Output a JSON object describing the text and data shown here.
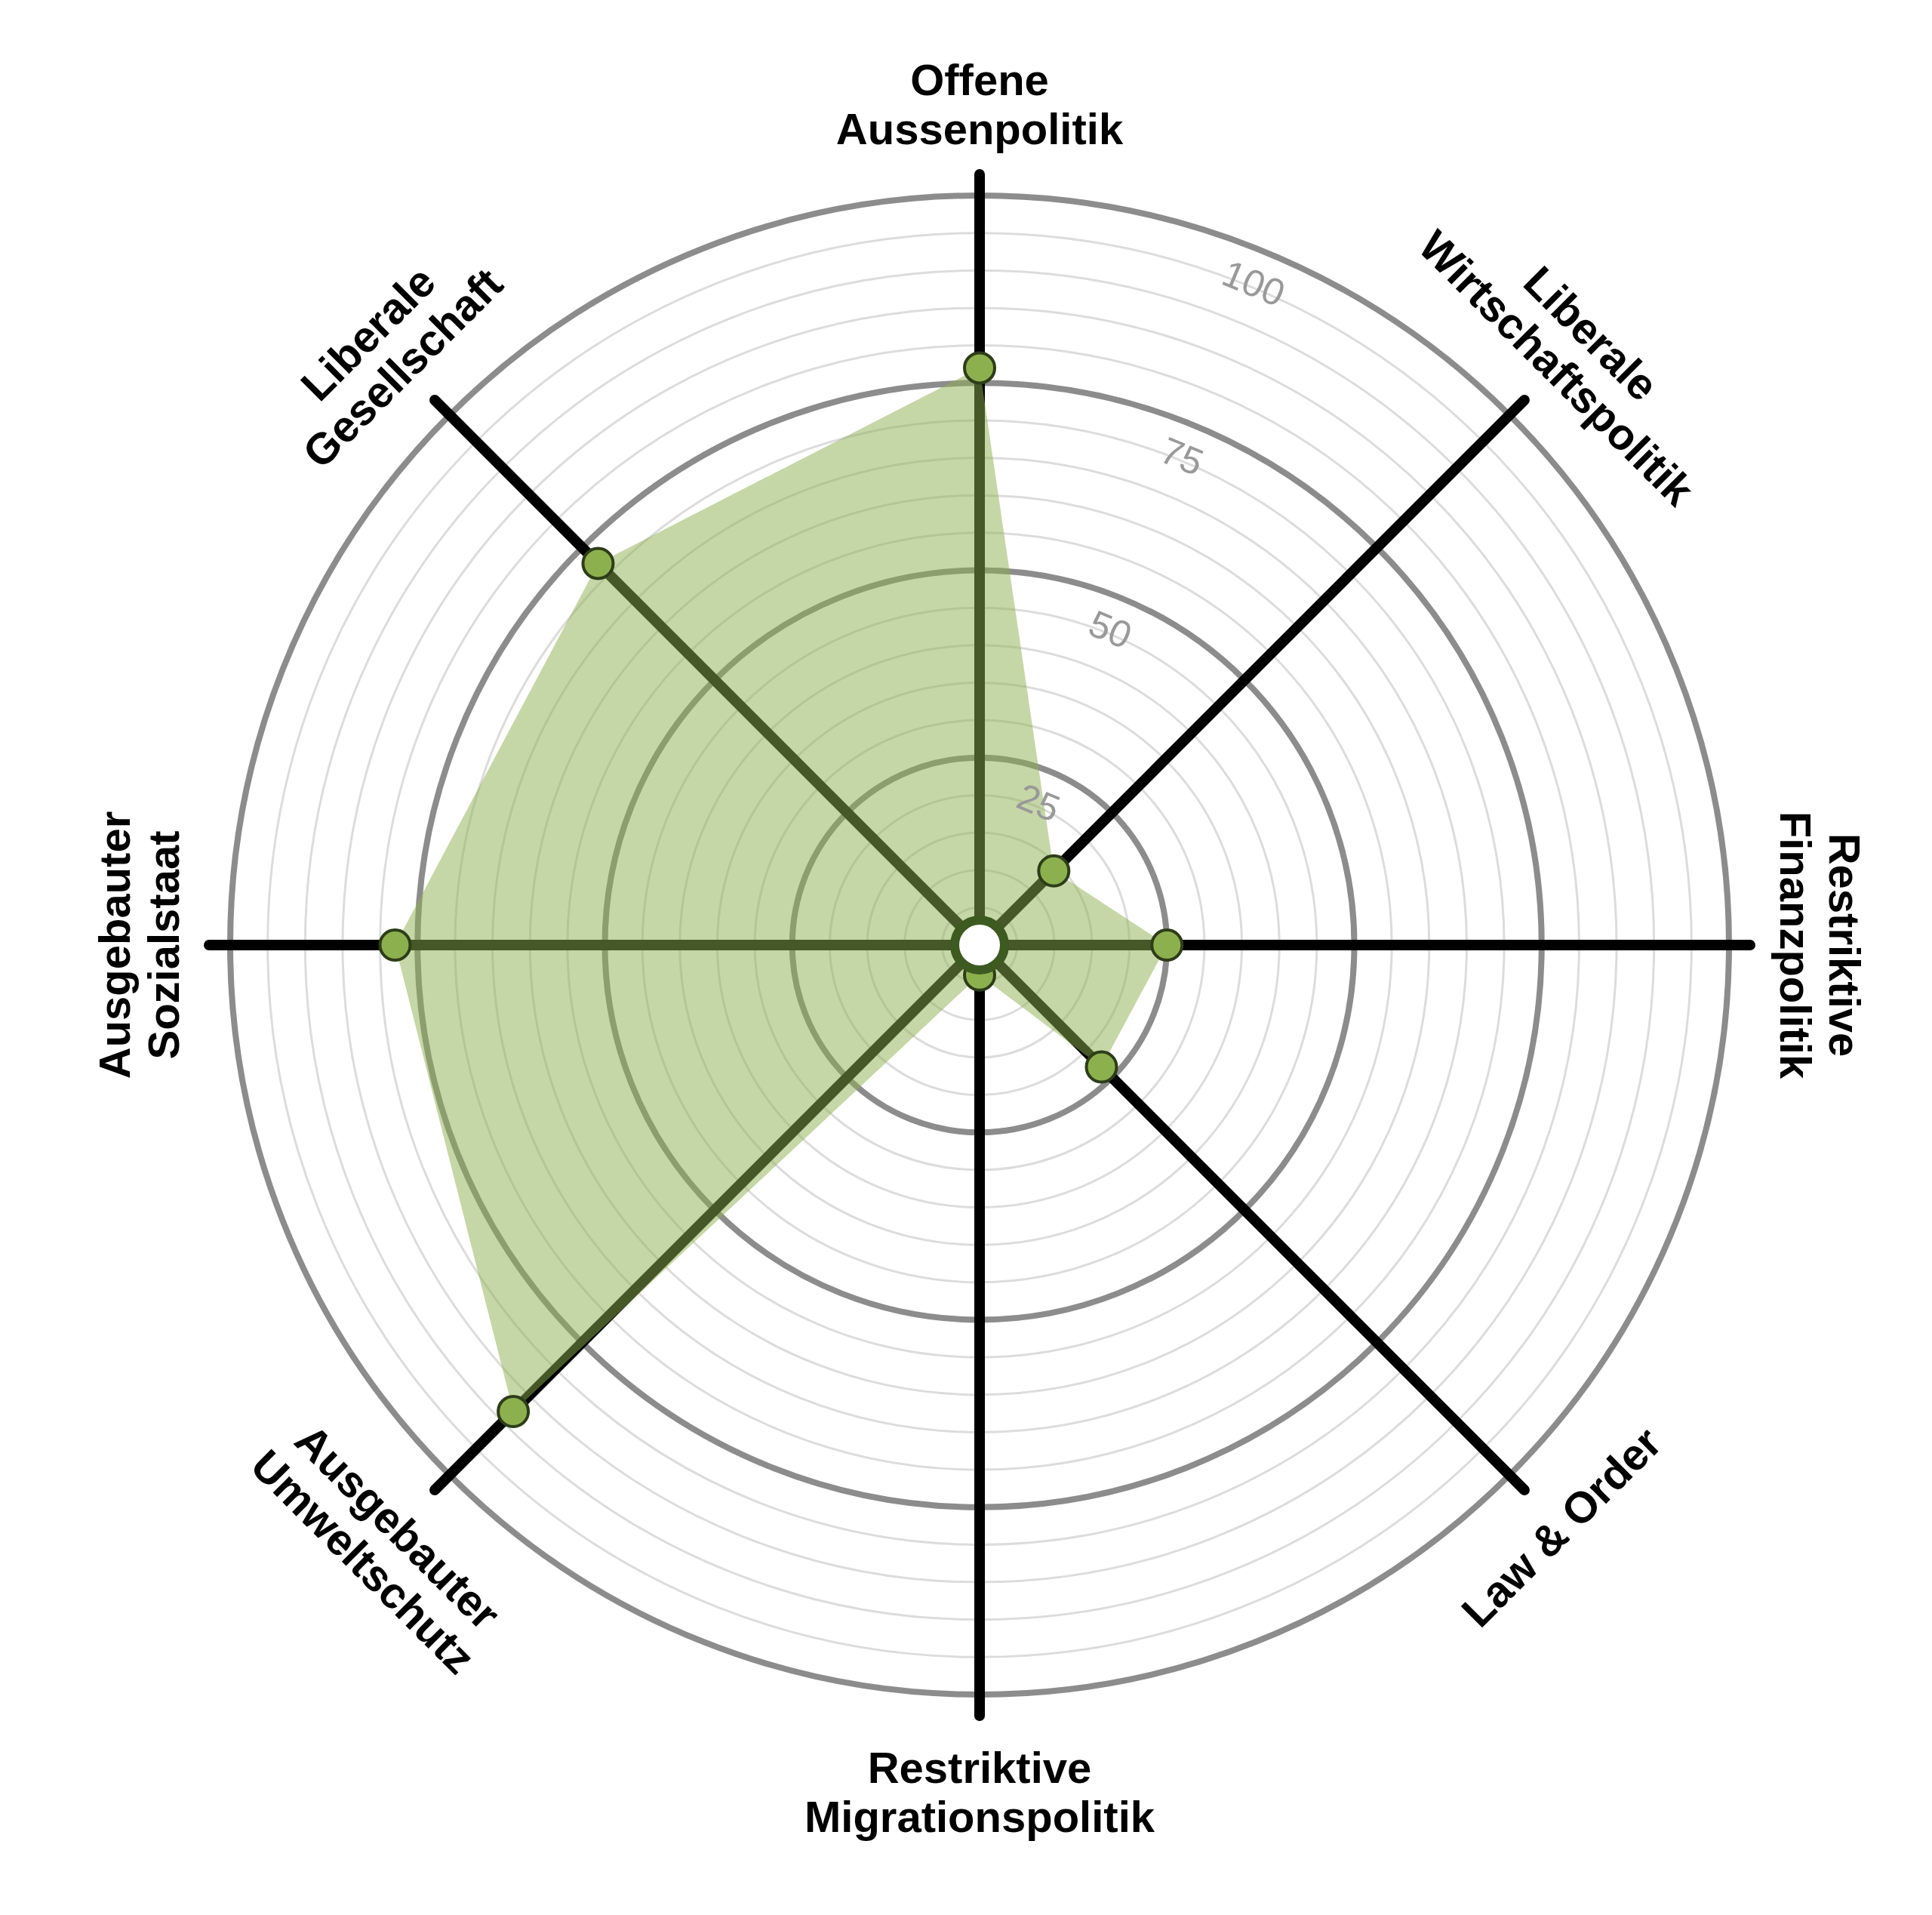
{
  "chart_data": {
    "type": "radar",
    "categories": [
      "Offene\nAussenpolitik",
      "Liberale\nWirtschaftspolitik",
      "Restriktive\nFinanzpolitik",
      "Law & Order",
      "Restriktive\nMigrationspolitik",
      "Ausgebauter\nUmweltschutz",
      "Ausgebauter\nSozialstaat",
      "Liberale\nGesellschaft"
    ],
    "series": [
      {
        "color": "#8db04f",
        "values": [
          77,
          14,
          25,
          23,
          4,
          88,
          78,
          72
        ]
      }
    ],
    "ylim": [
      0,
      100
    ],
    "yticks": [
      25,
      50,
      75,
      100
    ],
    "grid": true,
    "marker": "circle"
  }
}
